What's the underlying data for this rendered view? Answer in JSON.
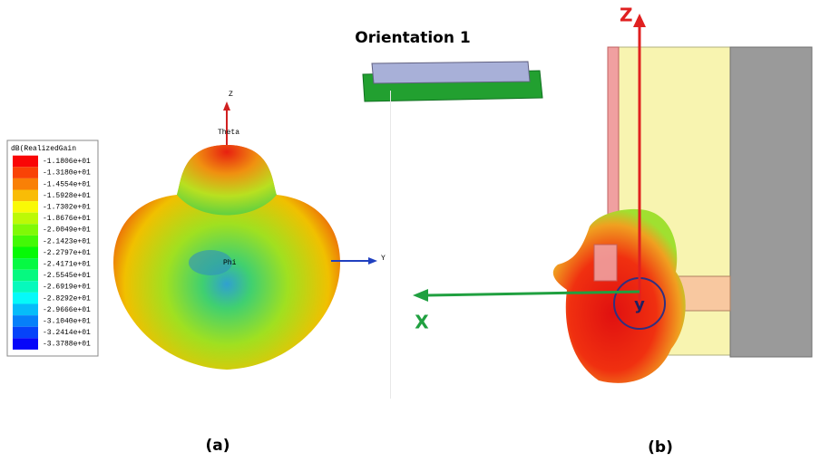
{
  "figure": {
    "orientation_label": "Orientation 1",
    "panel_a": {
      "legend_title": "dB(RealizedGain",
      "legend_values": [
        "-1.1806e+01",
        "-1.3180e+01",
        "-1.4554e+01",
        "-1.5928e+01",
        "-1.7302e+01",
        "-1.8676e+01",
        "-2.0049e+01",
        "-2.1423e+01",
        "-2.2797e+01",
        "-2.4171e+01",
        "-2.5545e+01",
        "-2.6919e+01",
        "-2.8292e+01",
        "-2.9666e+01",
        "-3.1040e+01",
        "-3.2414e+01",
        "-3.3788e+01"
      ],
      "axis_z": "Z",
      "axis_y": "Y",
      "theta": "Theta",
      "phi": "Phi",
      "caption": "(a)"
    },
    "panel_b": {
      "axis_z": "Z",
      "axis_x": "X",
      "axis_y": "y",
      "caption": "(b)"
    }
  }
}
